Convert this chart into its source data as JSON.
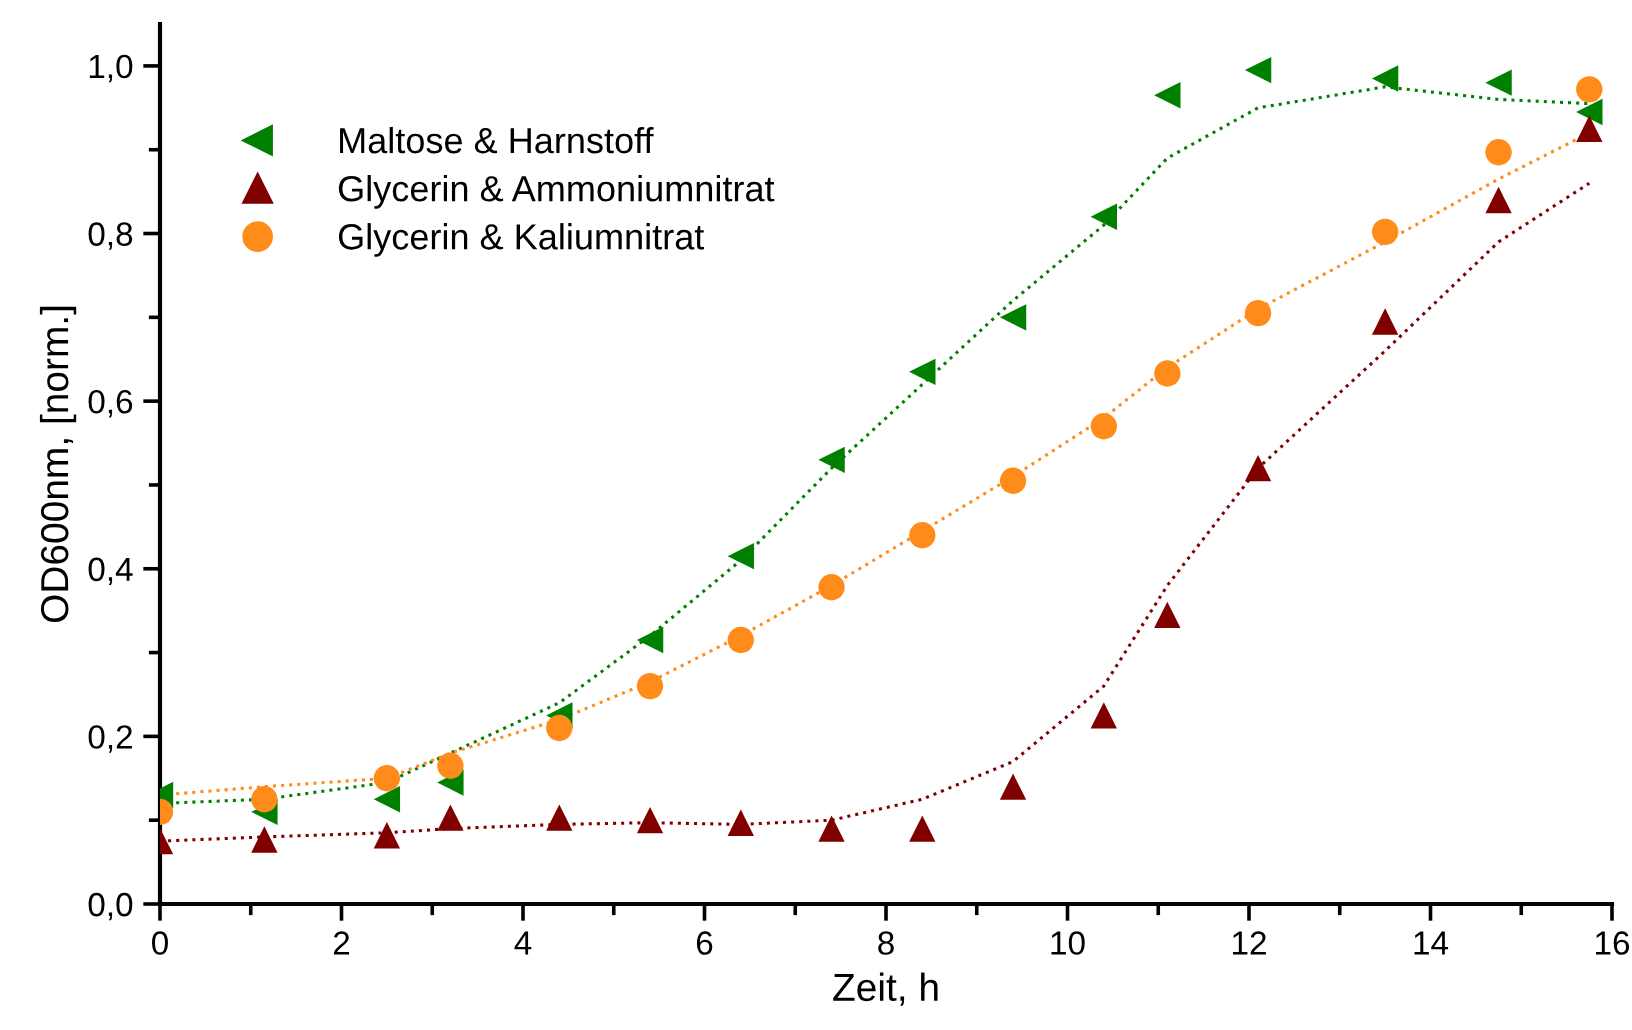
{
  "chart_data": {
    "type": "scatter",
    "xlabel": "Zeit, h",
    "ylabel": "OD600nm, [norm.]",
    "xlim": [
      0,
      16
    ],
    "xticks": [
      0,
      2,
      4,
      6,
      8,
      10,
      12,
      14,
      16
    ],
    "ylim": [
      0,
      1.05
    ],
    "yticks": [
      {
        "value": 0,
        "label": "0,0"
      },
      {
        "value": 0.2,
        "label": "0,2"
      },
      {
        "value": 0.4,
        "label": "0,4"
      },
      {
        "value": 0.6,
        "label": "0,6"
      },
      {
        "value": 0.8,
        "label": "0,8"
      },
      {
        "value": 1.0,
        "label": "1,0"
      }
    ],
    "legend": "top left",
    "grid": false,
    "series": [
      {
        "name": "Maltose & Harnstoff",
        "color": "#008000",
        "marker": "triangle-left",
        "x": [
          0,
          1.15,
          2.5,
          3.2,
          4.4,
          5.4,
          6.4,
          7.4,
          8.4,
          9.4,
          10.4,
          11.1,
          12.1,
          13.5,
          14.75,
          15.75
        ],
        "values": [
          0.13,
          0.11,
          0.125,
          0.145,
          0.225,
          0.315,
          0.415,
          0.53,
          0.635,
          0.7,
          0.82,
          0.965,
          0.995,
          0.985,
          0.98,
          0.945
        ]
      },
      {
        "name": "Glycerin & Ammoniumnitrat",
        "color": "#800000",
        "marker": "triangle",
        "x": [
          0,
          1.15,
          2.5,
          3.2,
          4.4,
          5.4,
          6.4,
          7.4,
          8.4,
          9.4,
          10.4,
          11.1,
          12.1,
          13.5,
          14.75,
          15.75
        ],
        "values": [
          0.075,
          0.077,
          0.082,
          0.103,
          0.103,
          0.1,
          0.097,
          0.09,
          0.09,
          0.14,
          0.225,
          0.345,
          0.52,
          0.695,
          0.84,
          0.925
        ]
      },
      {
        "name": "Glycerin & Kaliumnitrat",
        "color": "#ff8c1a",
        "marker": "circle",
        "x": [
          0,
          1.15,
          2.5,
          3.2,
          4.4,
          5.4,
          6.4,
          7.4,
          8.4,
          9.4,
          10.4,
          11.1,
          12.1,
          13.5,
          14.75,
          15.75
        ],
        "values": [
          0.11,
          0.125,
          0.15,
          0.165,
          0.21,
          0.26,
          0.315,
          0.378,
          0.44,
          0.505,
          0.57,
          0.633,
          0.705,
          0.802,
          0.897,
          0.972
        ]
      },
      {
        "type": "line",
        "line_style": "dotted",
        "color": "#008000",
        "x": [
          0,
          1.15,
          2.5,
          3.2,
          4.4,
          5.4,
          6.4,
          7.4,
          8.4,
          9.4,
          10.4,
          11.1,
          12.1,
          13.5,
          14.75,
          15.75
        ],
        "values": [
          0.12,
          0.125,
          0.145,
          0.18,
          0.24,
          0.32,
          0.41,
          0.52,
          0.62,
          0.72,
          0.81,
          0.89,
          0.95,
          0.975,
          0.96,
          0.955
        ]
      },
      {
        "type": "line",
        "line_style": "dotted",
        "color": "#800000",
        "x": [
          0,
          1.15,
          2.5,
          3.2,
          4.4,
          5.4,
          6.4,
          7.4,
          8.4,
          9.4,
          10.4,
          11.1,
          12.1,
          13.5,
          14.75,
          15.75
        ],
        "values": [
          0.075,
          0.08,
          0.085,
          0.09,
          0.095,
          0.097,
          0.095,
          0.1,
          0.125,
          0.17,
          0.26,
          0.38,
          0.52,
          0.66,
          0.79,
          0.86
        ]
      },
      {
        "type": "line",
        "line_style": "dotted",
        "color": "#ff8c1a",
        "x": [
          0,
          1.15,
          2.5,
          3.2,
          4.4,
          5.4,
          6.4,
          7.4,
          8.4,
          9.4,
          10.4,
          11.1,
          12.1,
          13.5,
          14.75,
          15.75
        ],
        "values": [
          0.13,
          0.14,
          0.15,
          0.18,
          0.22,
          0.265,
          0.32,
          0.38,
          0.445,
          0.51,
          0.58,
          0.64,
          0.71,
          0.79,
          0.865,
          0.92
        ]
      }
    ]
  }
}
